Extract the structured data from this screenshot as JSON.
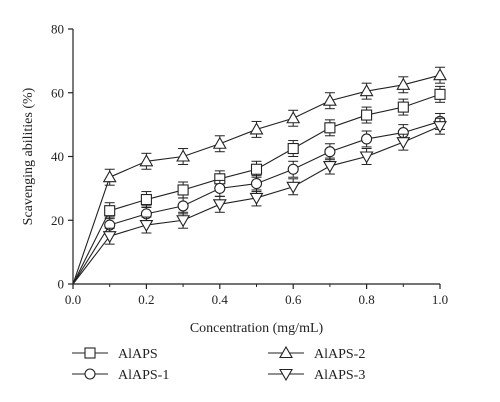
{
  "chart_data": {
    "type": "line",
    "title": "",
    "xlabel": "Concentration (mg/mL)",
    "ylabel": "Scavenging abilities (%)",
    "xlim": [
      0.0,
      1.0
    ],
    "ylim": [
      0,
      80
    ],
    "x_ticks": [
      0.0,
      0.2,
      0.4,
      0.6,
      0.8,
      1.0
    ],
    "x_tick_labels": [
      "0.0",
      "0.2",
      "0.4",
      "0.6",
      "0.8",
      "1.0"
    ],
    "y_ticks": [
      0,
      20,
      40,
      60,
      80
    ],
    "y_tick_labels": [
      "0",
      "20",
      "40",
      "60",
      "80"
    ],
    "grid": false,
    "legend_position": "bottom",
    "x": [
      0.0,
      0.1,
      0.2,
      0.3,
      0.4,
      0.5,
      0.6,
      0.7,
      0.8,
      0.9,
      1.0
    ],
    "series": [
      {
        "name": "AlAPS",
        "marker": "square",
        "values": [
          0,
          23,
          26.5,
          29.5,
          33,
          36,
          42.5,
          49,
          53,
          55.5,
          59.5
        ],
        "errors": [
          0,
          2.5,
          2.5,
          2.5,
          2.5,
          2.5,
          2.5,
          2.5,
          2.5,
          2.5,
          2.5
        ]
      },
      {
        "name": "AlAPS-1",
        "marker": "circle",
        "values": [
          0,
          18.5,
          22,
          24.5,
          30,
          31.5,
          36,
          41.5,
          45.5,
          47.5,
          51
        ],
        "errors": [
          0,
          2.5,
          2.5,
          2.5,
          2.5,
          2.5,
          2.5,
          2.5,
          2.5,
          2.5,
          2.5
        ]
      },
      {
        "name": "AlAPS-2",
        "marker": "triangle-up",
        "values": [
          0,
          33.5,
          38.5,
          40,
          44,
          48.5,
          52,
          57.5,
          60.5,
          62.5,
          65.5
        ],
        "errors": [
          0,
          2.5,
          2.5,
          2.5,
          2.5,
          2.5,
          2.5,
          2.5,
          2.5,
          2.5,
          2.5
        ]
      },
      {
        "name": "AlAPS-3",
        "marker": "triangle-down",
        "values": [
          0,
          15,
          18.5,
          20,
          25,
          27,
          30.5,
          37,
          40,
          44.5,
          49.5
        ],
        "errors": [
          0,
          2.5,
          2.5,
          2.5,
          2.5,
          2.5,
          2.5,
          2.5,
          2.5,
          2.5,
          2.5
        ]
      }
    ]
  }
}
